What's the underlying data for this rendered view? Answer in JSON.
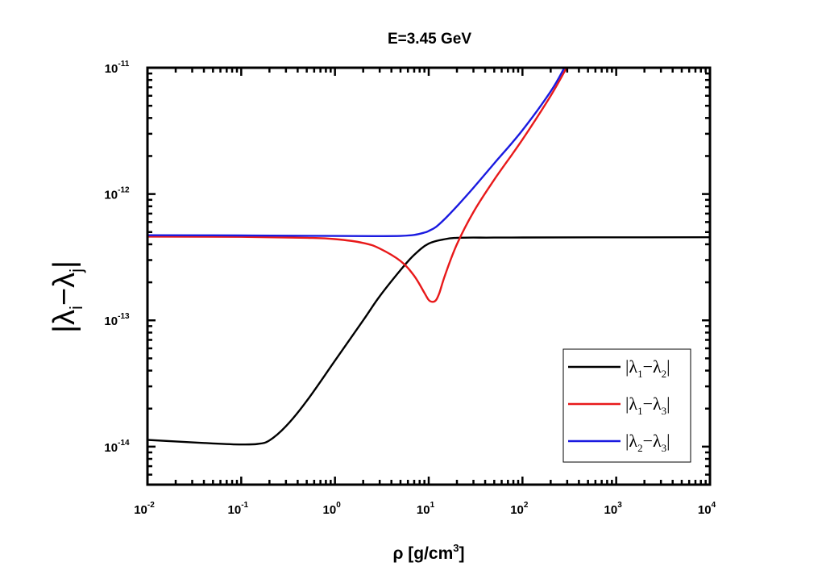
{
  "chart_data": {
    "type": "line",
    "title": "E=3.45 GeV",
    "xlabel": "ρ [g/cm3]",
    "ylabel": "|λi−λj|",
    "x_scale": "log",
    "y_scale": "log",
    "xlim": [
      0.01,
      10000
    ],
    "ylim": [
      5e-15,
      1e-11
    ],
    "grid": false,
    "legend_position": "bottom-right",
    "x_ticks": [
      {
        "base": "10",
        "exp": "-2"
      },
      {
        "base": "10",
        "exp": "-1"
      },
      {
        "base": "10",
        "exp": "0"
      },
      {
        "base": "10",
        "exp": "1"
      },
      {
        "base": "10",
        "exp": "2"
      },
      {
        "base": "10",
        "exp": "3"
      },
      {
        "base": "10",
        "exp": "4"
      }
    ],
    "y_ticks": [
      {
        "base": "10",
        "exp": "-14"
      },
      {
        "base": "10",
        "exp": "-13"
      },
      {
        "base": "10",
        "exp": "-12"
      },
      {
        "base": "10",
        "exp": "-11"
      }
    ],
    "series": [
      {
        "name": "|λ1−λ2|",
        "color": "#000000",
        "x": [
          0.01,
          0.02,
          0.05,
          0.1,
          0.15,
          0.2,
          0.3,
          0.5,
          1,
          2,
          3,
          5,
          7,
          10,
          15,
          20,
          30,
          50,
          100,
          1000,
          10000
        ],
        "y": [
          1.13e-14,
          1.1e-14,
          1.06e-14,
          1.04e-14,
          1.05e-14,
          1.12e-14,
          1.45e-14,
          2.3e-14,
          4.8e-14,
          1e-13,
          1.55e-13,
          2.5e-13,
          3.3e-13,
          4.05e-13,
          4.4e-13,
          4.5e-13,
          4.52e-13,
          4.52e-13,
          4.53e-13,
          4.54e-13,
          4.55e-13
        ]
      },
      {
        "name": "|λ1−λ3|",
        "color": "#e8191a",
        "x": [
          0.01,
          0.1,
          0.5,
          1,
          2,
          3,
          5,
          7,
          9,
          10,
          11,
          12,
          13,
          15,
          20,
          30,
          50,
          100,
          200,
          300
        ],
        "y": [
          4.6e-13,
          4.58e-13,
          4.5e-13,
          4.4e-13,
          4.1e-13,
          3.7e-13,
          2.95e-13,
          2.25e-13,
          1.65e-13,
          1.45e-13,
          1.4e-13,
          1.45e-13,
          1.65e-13,
          2.3e-13,
          4e-13,
          7.2e-13,
          1.3e-12,
          2.7e-12,
          6e-12,
          1.02e-11
        ]
      },
      {
        "name": "|λ2−λ3|",
        "color": "#1a1ae0",
        "x": [
          0.01,
          0.1,
          1,
          3,
          5,
          7,
          9,
          10,
          12,
          15,
          20,
          30,
          50,
          100,
          200,
          280
        ],
        "y": [
          4.72e-13,
          4.7e-13,
          4.66e-13,
          4.64e-13,
          4.66e-13,
          4.75e-13,
          4.95e-13,
          5.1e-13,
          5.5e-13,
          6.4e-13,
          8e-13,
          1.12e-12,
          1.75e-12,
          3.2e-12,
          6.5e-12,
          1e-11
        ]
      }
    ]
  },
  "legend": [
    {
      "pre": "λ",
      "sub1": "1",
      "mid": "−λ",
      "sub2": "2"
    },
    {
      "pre": "λ",
      "sub1": "1",
      "mid": "−λ",
      "sub2": "3"
    },
    {
      "pre": "λ",
      "sub1": "2",
      "mid": "−λ",
      "sub2": "3"
    }
  ],
  "axes_text": {
    "xlabel_main": "ρ [g/cm",
    "xlabel_sup": "3",
    "xlabel_end": "]",
    "ylabel_pre": "|λ",
    "ylabel_sub1": "i",
    "ylabel_mid": "−λ",
    "ylabel_sub2": "j",
    "ylabel_end": "|"
  }
}
